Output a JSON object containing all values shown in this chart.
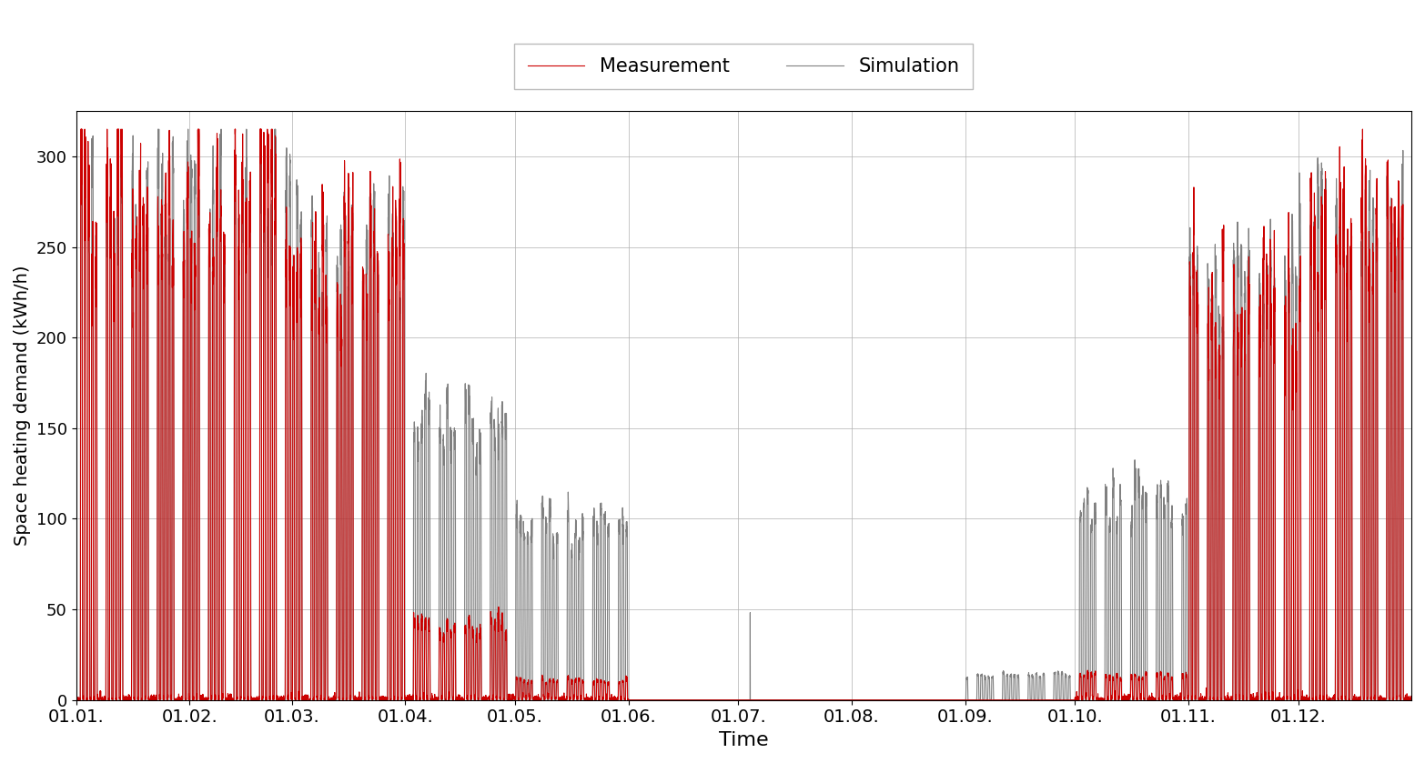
{
  "title": "",
  "xlabel": "Time",
  "ylabel": "Space heating demand (kWh/h)",
  "ylim": [
    0,
    325
  ],
  "yticks": [
    0,
    50,
    100,
    150,
    200,
    250,
    300
  ],
  "measurement_color": "#cc0000",
  "simulation_color": "#808080",
  "background_color": "#ffffff",
  "grid_color": "#b0b0b0",
  "legend_labels": [
    "Measurement",
    "Simulation"
  ],
  "figsize": [
    15.66,
    8.39
  ],
  "dpi": 100,
  "month_labels": [
    "01.01.",
    "01.02.",
    "01.03.",
    "01.04.",
    "01.05.",
    "01.06.",
    "01.07.",
    "01.08.",
    "01.09.",
    "01.10.",
    "01.11.",
    "01.12."
  ],
  "seed": 42
}
